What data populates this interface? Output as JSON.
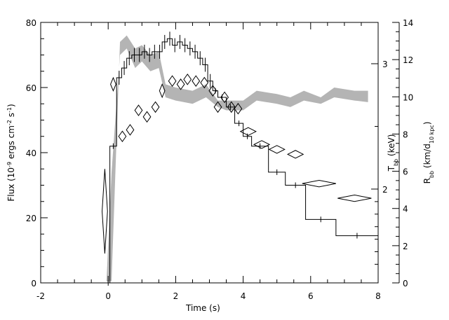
{
  "chart_data": {
    "type": "line",
    "title": "",
    "axes": {
      "x": {
        "label": "Time (s)",
        "range": [
          -2,
          8
        ],
        "ticks": [
          -2,
          0,
          2,
          4,
          6,
          8
        ]
      },
      "y_left": {
        "label_main": "Flux (10",
        "label_exp1": "-9",
        "label_mid": " ergs cm",
        "label_exp2": "-2",
        "label_s": " s",
        "label_exp3": "-1",
        "label_end": ")",
        "range": [
          0,
          80
        ],
        "ticks": [
          0,
          20,
          40,
          60,
          80
        ]
      },
      "y_t": {
        "label_main": "T",
        "label_sub": "bb",
        "label_end": " (keV)",
        "ticks": [
          2,
          3
        ]
      },
      "y_r": {
        "label_main": "R",
        "label_sub": "bb",
        "label_mid": " (km/d",
        "label_sub2": "10 kpc",
        "label_end": ")",
        "range": [
          0,
          14
        ],
        "ticks": [
          0,
          2,
          4,
          6,
          8,
          10,
          12,
          14
        ]
      }
    },
    "series": [
      {
        "kind": "flux_histogram",
        "points": [
          [
            -0.05,
            0.05,
            0
          ],
          [
            0.05,
            0.25,
            42
          ],
          [
            0.25,
            0.4,
            63
          ],
          [
            0.4,
            0.55,
            66
          ],
          [
            0.55,
            0.7,
            69
          ],
          [
            0.7,
            0.85,
            70
          ],
          [
            0.85,
            1.0,
            70
          ],
          [
            1.0,
            1.15,
            71
          ],
          [
            1.15,
            1.3,
            70
          ],
          [
            1.3,
            1.45,
            71
          ],
          [
            1.45,
            1.6,
            71
          ],
          [
            1.6,
            1.75,
            74
          ],
          [
            1.75,
            1.9,
            75
          ],
          [
            1.9,
            2.05,
            73
          ],
          [
            2.05,
            2.2,
            74
          ],
          [
            2.2,
            2.35,
            73
          ],
          [
            2.35,
            2.5,
            72
          ],
          [
            2.5,
            2.65,
            71
          ],
          [
            2.65,
            2.8,
            69
          ],
          [
            2.8,
            2.95,
            67
          ],
          [
            2.95,
            3.1,
            62
          ],
          [
            3.1,
            3.25,
            59
          ],
          [
            3.25,
            3.5,
            57
          ],
          [
            3.5,
            3.75,
            54
          ],
          [
            3.75,
            4.0,
            49
          ],
          [
            4.0,
            4.25,
            45
          ],
          [
            4.25,
            4.75,
            42
          ],
          [
            4.75,
            5.25,
            34
          ],
          [
            5.25,
            5.85,
            30
          ],
          [
            5.85,
            6.75,
            19.5
          ],
          [
            6.75,
            8.0,
            14.5
          ]
        ]
      },
      {
        "kind": "temperature_diamonds",
        "points": [
          [
            -0.1,
            22,
            0.08,
            13
          ],
          [
            0.15,
            61,
            0.08,
            2
          ],
          [
            0.42,
            45,
            0.11,
            1.6
          ],
          [
            0.65,
            47,
            0.11,
            1.6
          ],
          [
            0.9,
            53,
            0.11,
            1.6
          ],
          [
            1.15,
            51,
            0.11,
            1.6
          ],
          [
            1.4,
            54,
            0.11,
            1.6
          ],
          [
            1.6,
            59,
            0.08,
            2
          ],
          [
            1.9,
            62,
            0.11,
            1.6
          ],
          [
            2.15,
            61,
            0.11,
            1.6
          ],
          [
            2.35,
            62.5,
            0.11,
            1.6
          ],
          [
            2.6,
            62,
            0.11,
            1.6
          ],
          [
            2.85,
            61.5,
            0.11,
            1.6
          ],
          [
            3.1,
            59,
            0.11,
            1.6
          ],
          [
            3.25,
            54,
            0.11,
            1.6
          ],
          [
            3.45,
            57,
            0.11,
            1.6
          ],
          [
            3.65,
            54,
            0.11,
            1.6
          ],
          [
            3.85,
            53.5,
            0.11,
            1.6
          ],
          [
            4.15,
            46.5,
            0.23,
            1.2
          ],
          [
            4.55,
            42.5,
            0.23,
            1.2
          ],
          [
            5.0,
            41,
            0.23,
            1.2
          ],
          [
            5.55,
            39.5,
            0.23,
            1.2
          ],
          [
            6.25,
            30.5,
            0.5,
            1.0
          ],
          [
            7.3,
            26,
            0.5,
            1.0
          ]
        ]
      },
      {
        "kind": "radius_band",
        "upper": [
          [
            0.1,
            0.5
          ],
          [
            0.35,
            74
          ],
          [
            0.55,
            76
          ],
          [
            0.8,
            72
          ],
          [
            1.0,
            73
          ],
          [
            1.25,
            70
          ],
          [
            1.5,
            71
          ],
          [
            1.7,
            61
          ],
          [
            2.0,
            60
          ],
          [
            2.5,
            59
          ],
          [
            2.9,
            61
          ],
          [
            3.25,
            56
          ],
          [
            3.5,
            56
          ],
          [
            4.0,
            56
          ],
          [
            4.4,
            59
          ],
          [
            5.0,
            58
          ],
          [
            5.4,
            57
          ],
          [
            5.8,
            59
          ],
          [
            6.3,
            57
          ],
          [
            6.7,
            60
          ],
          [
            7.3,
            59
          ],
          [
            7.7,
            59
          ]
        ],
        "lower": [
          [
            7.7,
            55.5
          ],
          [
            7.3,
            56
          ],
          [
            6.7,
            57
          ],
          [
            6.3,
            55
          ],
          [
            5.8,
            56
          ],
          [
            5.4,
            54
          ],
          [
            5.0,
            55
          ],
          [
            4.4,
            56
          ],
          [
            4.0,
            53
          ],
          [
            3.5,
            53
          ],
          [
            3.25,
            54
          ],
          [
            2.9,
            57
          ],
          [
            2.5,
            55
          ],
          [
            2.0,
            56
          ],
          [
            1.7,
            57
          ],
          [
            1.5,
            66
          ],
          [
            1.25,
            65
          ],
          [
            1.0,
            68
          ],
          [
            0.8,
            66
          ],
          [
            0.55,
            72
          ],
          [
            0.35,
            70
          ],
          [
            0.1,
            34
          ],
          [
            -0.05,
            0.5
          ]
        ]
      }
    ]
  }
}
